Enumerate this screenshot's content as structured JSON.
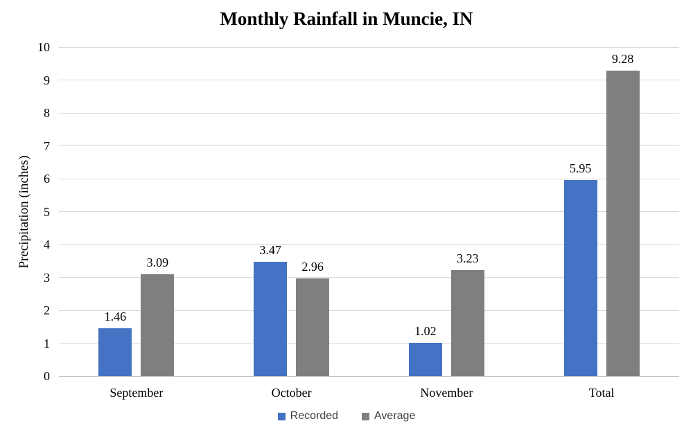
{
  "chart_data": {
    "type": "bar",
    "title": "Monthly Rainfall in Muncie, IN",
    "xlabel": "",
    "ylabel": "Precipitation (inches)",
    "categories": [
      "September",
      "October",
      "November",
      "Total"
    ],
    "series": [
      {
        "name": "Recorded",
        "color": "#4472C4",
        "values": [
          1.46,
          3.47,
          1.02,
          5.95
        ]
      },
      {
        "name": "Average",
        "color": "#7F7F7F",
        "values": [
          3.09,
          2.96,
          3.23,
          9.28
        ]
      }
    ],
    "ylim": [
      0,
      10
    ],
    "ytick_step": 1,
    "grid": true,
    "legend_position": "bottom",
    "data_labels": true,
    "value_decimals": 2
  },
  "colors": {
    "gridline": "#D9D9D9",
    "axis_line": "#BFBFBF",
    "text": "#000000",
    "legend_text": "#404040"
  }
}
